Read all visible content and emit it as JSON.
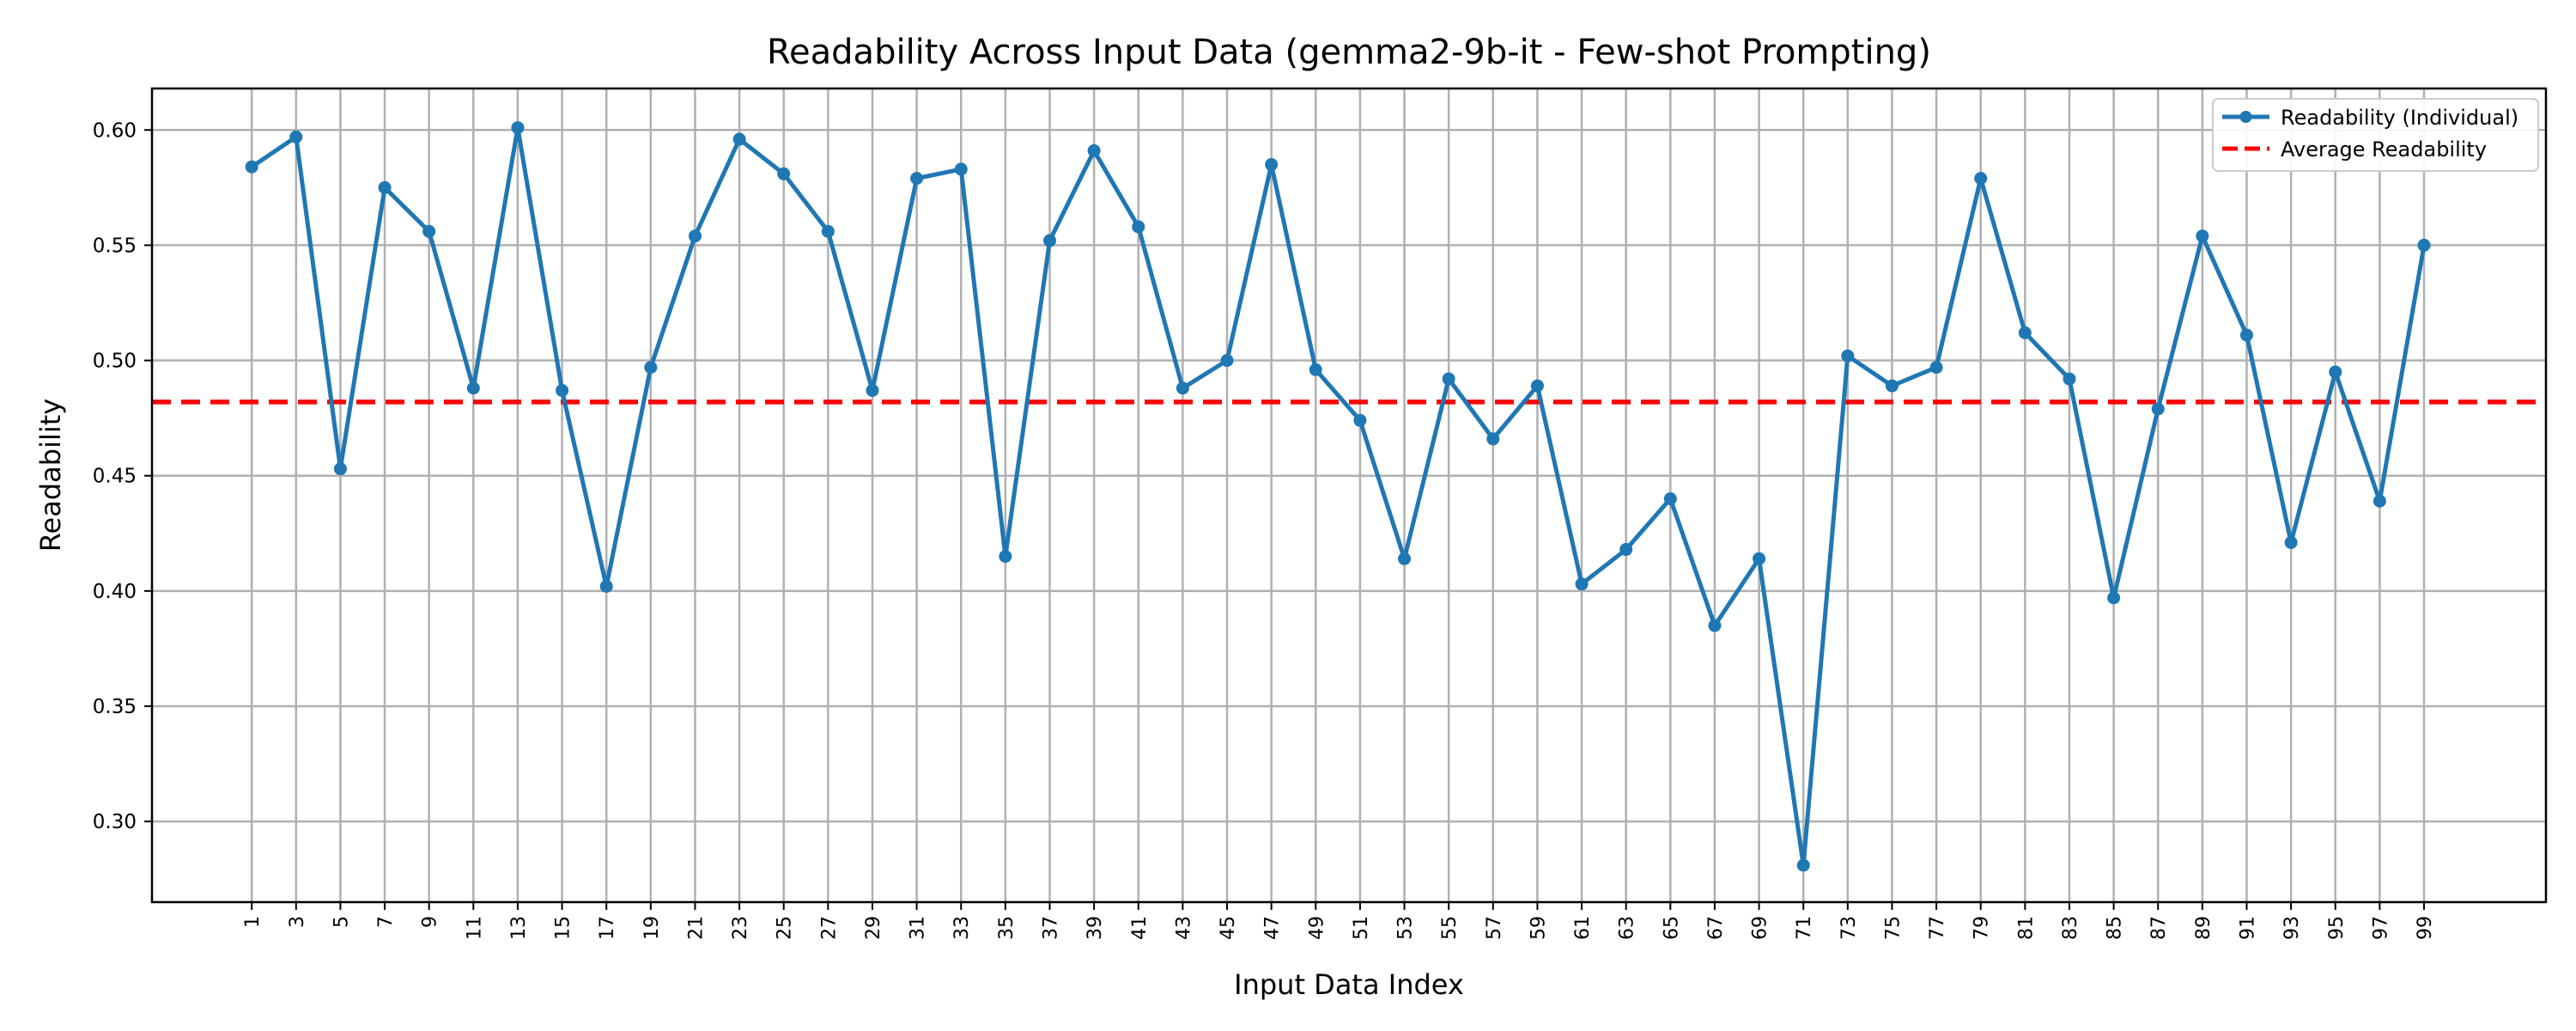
{
  "chart_data": {
    "type": "line",
    "title": "Readability Across Input Data (gemma2-9b-it - Few-shot Prompting)",
    "xlabel": "Input Data Index",
    "ylabel": "Readability",
    "ylim": [
      0.265,
      0.618
    ],
    "xlim": [
      -3.5,
      104.5
    ],
    "yticks": [
      "0.30",
      "0.35",
      "0.40",
      "0.45",
      "0.50",
      "0.55",
      "0.60"
    ],
    "xticks": [
      1,
      3,
      5,
      7,
      9,
      11,
      13,
      15,
      17,
      19,
      21,
      23,
      25,
      27,
      29,
      31,
      33,
      35,
      37,
      39,
      41,
      43,
      45,
      47,
      49,
      51,
      53,
      55,
      57,
      59,
      61,
      63,
      65,
      67,
      69,
      71,
      73,
      75,
      77,
      79,
      81,
      83,
      85,
      87,
      89,
      91,
      93,
      95,
      97,
      99
    ],
    "grid": true,
    "legend_position": "top-right",
    "series": [
      {
        "name": "Readability (Individual)",
        "color": "#1f77b4",
        "style": "solid-with-markers",
        "x": [
          1,
          3,
          5,
          7,
          9,
          11,
          13,
          15,
          17,
          19,
          21,
          23,
          25,
          27,
          29,
          31,
          33,
          35,
          37,
          39,
          41,
          43,
          45,
          47,
          49,
          51,
          53,
          55,
          57,
          59,
          61,
          63,
          65,
          67,
          69,
          71,
          73,
          75,
          77,
          79,
          81,
          83,
          85,
          87,
          89,
          91,
          93,
          95,
          97,
          99
        ],
        "values": [
          0.584,
          0.597,
          0.453,
          0.575,
          0.556,
          0.488,
          0.601,
          0.487,
          0.402,
          0.497,
          0.554,
          0.596,
          0.581,
          0.556,
          0.487,
          0.579,
          0.583,
          0.415,
          0.552,
          0.591,
          0.558,
          0.488,
          0.5,
          0.585,
          0.496,
          0.474,
          0.414,
          0.492,
          0.466,
          0.489,
          0.403,
          0.418,
          0.44,
          0.385,
          0.414,
          0.281,
          0.502,
          0.489,
          0.497,
          0.579,
          0.512,
          0.492,
          0.397,
          0.479,
          0.554,
          0.511,
          0.421,
          0.495,
          0.439,
          0.55
        ]
      },
      {
        "name": "Average Readability",
        "color": "#ff0000",
        "style": "dashed",
        "value": 0.482
      }
    ]
  }
}
